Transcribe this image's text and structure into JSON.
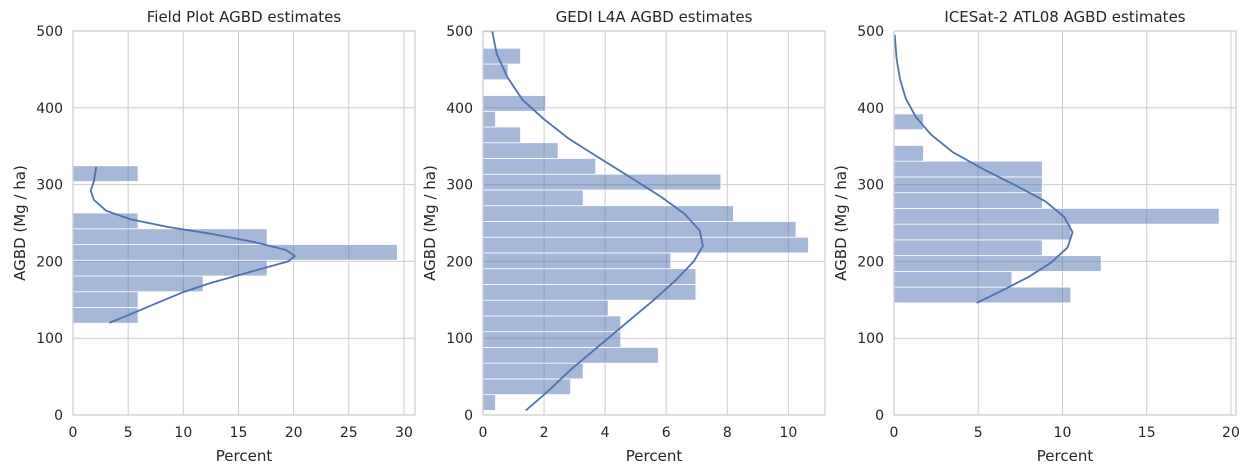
{
  "chart_data": [
    {
      "type": "histogram",
      "orientation": "horizontal",
      "title": "Field Plot AGBD estimates",
      "xlabel": "Percent",
      "ylabel": "AGBD (Mg / ha)",
      "xlim": [
        0,
        31
      ],
      "ylim": [
        0,
        500
      ],
      "xticks": [
        0,
        5,
        10,
        15,
        20,
        25,
        30
      ],
      "yticks": [
        0,
        100,
        200,
        300,
        400,
        500
      ],
      "bin_width": 20.5,
      "bins": [
        {
          "y0": 119.5,
          "y1": 140,
          "percent": 5.9
        },
        {
          "y0": 140,
          "y1": 160.5,
          "percent": 5.9
        },
        {
          "y0": 160.5,
          "y1": 181,
          "percent": 11.8
        },
        {
          "y0": 181,
          "y1": 201.5,
          "percent": 17.6
        },
        {
          "y0": 201.5,
          "y1": 222,
          "percent": 29.4
        },
        {
          "y0": 222,
          "y1": 242.5,
          "percent": 17.6
        },
        {
          "y0": 242.5,
          "y1": 263,
          "percent": 5.9
        },
        {
          "y0": 304,
          "y1": 324.5,
          "percent": 5.9
        }
      ],
      "kde": [
        [
          3.3,
          120
        ],
        [
          5,
          130
        ],
        [
          7.5,
          145
        ],
        [
          10,
          160
        ],
        [
          12.5,
          172
        ],
        [
          15,
          182
        ],
        [
          17.5,
          192
        ],
        [
          19.5,
          200
        ],
        [
          20.1,
          207
        ],
        [
          19.3,
          215
        ],
        [
          16.5,
          225
        ],
        [
          12.5,
          236
        ],
        [
          8.5,
          245
        ],
        [
          5.2,
          255
        ],
        [
          3,
          266
        ],
        [
          1.9,
          280
        ],
        [
          1.6,
          292
        ],
        [
          1.9,
          305
        ],
        [
          2.1,
          323
        ]
      ]
    },
    {
      "type": "histogram",
      "orientation": "horizontal",
      "title": "GEDI L4A AGBD estimates",
      "xlabel": "Percent",
      "ylabel": "AGBD (Mg / ha)",
      "xlim": [
        0,
        11.2
      ],
      "ylim": [
        0,
        500
      ],
      "xticks": [
        0,
        2,
        4,
        6,
        8,
        10
      ],
      "yticks": [
        0,
        100,
        200,
        300,
        400,
        500
      ],
      "bin_width": 20.5,
      "bins": [
        {
          "y0": 6,
          "y1": 26.5,
          "percent": 0.41
        },
        {
          "y0": 26.5,
          "y1": 47,
          "percent": 2.87
        },
        {
          "y0": 47,
          "y1": 67.5,
          "percent": 3.28
        },
        {
          "y0": 67.5,
          "y1": 88,
          "percent": 5.74
        },
        {
          "y0": 88,
          "y1": 108.5,
          "percent": 4.51
        },
        {
          "y0": 108.5,
          "y1": 129,
          "percent": 4.51
        },
        {
          "y0": 129,
          "y1": 149.5,
          "percent": 4.1
        },
        {
          "y0": 149.5,
          "y1": 170,
          "percent": 6.97
        },
        {
          "y0": 170,
          "y1": 190.5,
          "percent": 6.97
        },
        {
          "y0": 190.5,
          "y1": 211,
          "percent": 6.15
        },
        {
          "y0": 211,
          "y1": 231.5,
          "percent": 10.66
        },
        {
          "y0": 231.5,
          "y1": 252,
          "percent": 10.25
        },
        {
          "y0": 252,
          "y1": 272.5,
          "percent": 8.2
        },
        {
          "y0": 272.5,
          "y1": 293,
          "percent": 3.28
        },
        {
          "y0": 293,
          "y1": 313.5,
          "percent": 7.79
        },
        {
          "y0": 313.5,
          "y1": 334,
          "percent": 3.69
        },
        {
          "y0": 334,
          "y1": 354.5,
          "percent": 2.46
        },
        {
          "y0": 354.5,
          "y1": 375,
          "percent": 1.23
        },
        {
          "y0": 375,
          "y1": 395.5,
          "percent": 0.41
        },
        {
          "y0": 395.5,
          "y1": 416,
          "percent": 2.05
        },
        {
          "y0": 436.5,
          "y1": 457,
          "percent": 0.82
        },
        {
          "y0": 457,
          "y1": 477.5,
          "percent": 1.23
        },
        {
          "y0": 498,
          "y1": 518.5,
          "percent": 0.41
        }
      ],
      "kde": [
        [
          1.4,
          6
        ],
        [
          2.1,
          30
        ],
        [
          2.9,
          60
        ],
        [
          3.8,
          90
        ],
        [
          4.7,
          120
        ],
        [
          5.6,
          150
        ],
        [
          6.3,
          175
        ],
        [
          6.9,
          200
        ],
        [
          7.2,
          220
        ],
        [
          7.1,
          240
        ],
        [
          6.6,
          262
        ],
        [
          5.8,
          285
        ],
        [
          4.8,
          310
        ],
        [
          3.8,
          335
        ],
        [
          2.8,
          360
        ],
        [
          2,
          385
        ],
        [
          1.3,
          410
        ],
        [
          0.8,
          440
        ],
        [
          0.45,
          470
        ],
        [
          0.3,
          500
        ]
      ]
    },
    {
      "type": "histogram",
      "orientation": "horizontal",
      "title": "ICESat-2 ATL08 AGBD estimates",
      "xlabel": "Percent",
      "ylabel": "AGBD (Mg / ha)",
      "xlim": [
        0,
        20.3
      ],
      "ylim": [
        0,
        500
      ],
      "xticks": [
        0,
        5,
        10,
        15,
        20
      ],
      "yticks": [
        0,
        100,
        200,
        300,
        400,
        500
      ],
      "bin_width": 20.5,
      "bins": [
        {
          "y0": 146,
          "y1": 166.5,
          "percent": 10.5
        },
        {
          "y0": 166.5,
          "y1": 187,
          "percent": 7
        },
        {
          "y0": 187,
          "y1": 207.5,
          "percent": 12.3
        },
        {
          "y0": 207.5,
          "y1": 228,
          "percent": 8.8
        },
        {
          "y0": 228,
          "y1": 248.5,
          "percent": 10.5
        },
        {
          "y0": 248.5,
          "y1": 269,
          "percent": 19.3
        },
        {
          "y0": 269,
          "y1": 289.5,
          "percent": 8.8
        },
        {
          "y0": 289.5,
          "y1": 310,
          "percent": 8.8
        },
        {
          "y0": 310,
          "y1": 330.5,
          "percent": 8.8
        },
        {
          "y0": 330.5,
          "y1": 351,
          "percent": 1.75
        },
        {
          "y0": 371.5,
          "y1": 392,
          "percent": 1.75
        }
      ],
      "kde": [
        [
          4.9,
          146
        ],
        [
          6.5,
          163
        ],
        [
          8,
          180
        ],
        [
          9.3,
          198
        ],
        [
          10.3,
          218
        ],
        [
          10.6,
          238
        ],
        [
          10.1,
          258
        ],
        [
          9,
          278
        ],
        [
          7.3,
          298
        ],
        [
          5.3,
          320
        ],
        [
          3.5,
          342
        ],
        [
          2.2,
          365
        ],
        [
          1.3,
          388
        ],
        [
          0.7,
          412
        ],
        [
          0.35,
          438
        ],
        [
          0.15,
          465
        ],
        [
          0.05,
          495
        ]
      ]
    }
  ]
}
